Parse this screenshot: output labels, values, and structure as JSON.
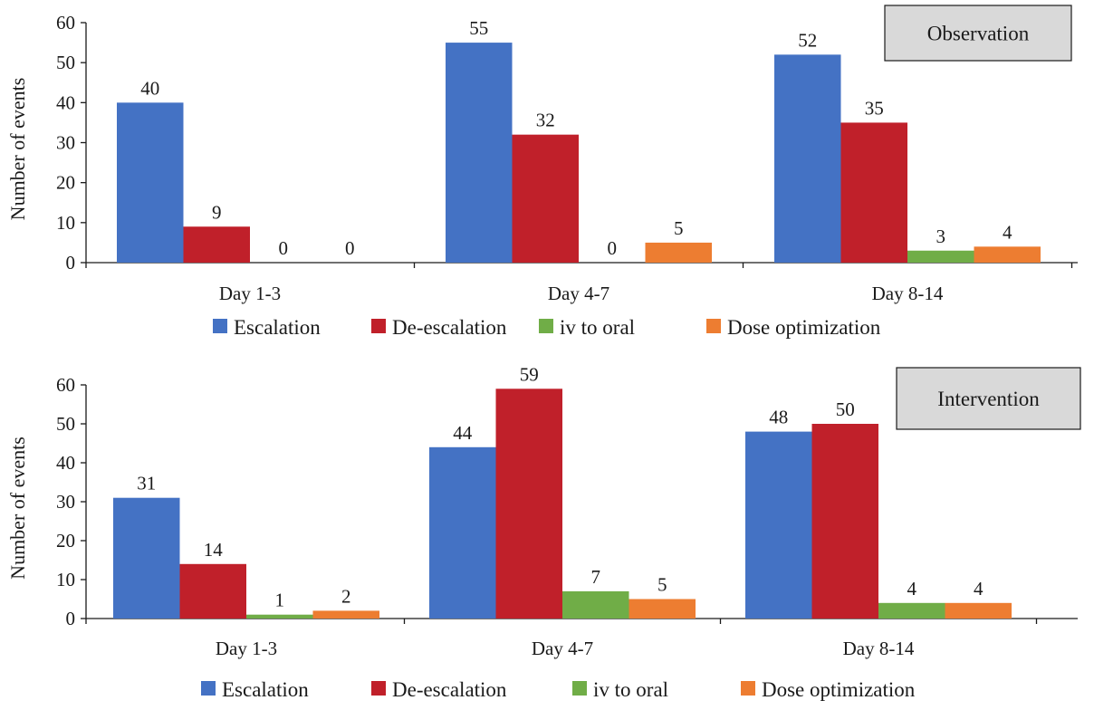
{
  "colors": {
    "escalation": "#4472C4",
    "de_escalation": "#C0202A",
    "iv_to_oral": "#70AD47",
    "dose_optimization": "#ED7D31",
    "axis": "#1a1a1a",
    "panel_fill": "#D9D9D9"
  },
  "chart_data": [
    {
      "type": "bar",
      "title": "Observation",
      "ylabel": "Number of events",
      "xlabel": "",
      "ylim": [
        0,
        60
      ],
      "yticks": [
        0,
        10,
        20,
        30,
        40,
        50,
        60
      ],
      "categories": [
        "Day 1-3",
        "Day 4-7",
        "Day 8-14"
      ],
      "series": [
        {
          "name": "Escalation",
          "color_key": "escalation",
          "values": [
            40,
            55,
            52
          ]
        },
        {
          "name": "De-escalation",
          "color_key": "de_escalation",
          "values": [
            9,
            32,
            35
          ]
        },
        {
          "name": "iv to oral",
          "color_key": "iv_to_oral",
          "values": [
            0,
            0,
            3
          ]
        },
        {
          "name": "Dose optimization",
          "color_key": "dose_optimization",
          "values": [
            0,
            5,
            4
          ]
        }
      ],
      "legend_position": "bottom",
      "grid": false
    },
    {
      "type": "bar",
      "title": "Intervention",
      "ylabel": "Number of events",
      "xlabel": "",
      "ylim": [
        0,
        60
      ],
      "yticks": [
        0,
        10,
        20,
        30,
        40,
        50,
        60
      ],
      "categories": [
        "Day 1-3",
        "Day 4-7",
        "Day 8-14"
      ],
      "series": [
        {
          "name": "Escalation",
          "color_key": "escalation",
          "values": [
            31,
            44,
            48
          ]
        },
        {
          "name": "De-escalation",
          "color_key": "de_escalation",
          "values": [
            14,
            59,
            50
          ]
        },
        {
          "name": "iv to oral",
          "color_key": "iv_to_oral",
          "values": [
            1,
            7,
            4
          ]
        },
        {
          "name": "Dose optimization",
          "color_key": "dose_optimization",
          "values": [
            2,
            5,
            4
          ]
        }
      ],
      "legend_position": "bottom",
      "grid": false
    }
  ]
}
